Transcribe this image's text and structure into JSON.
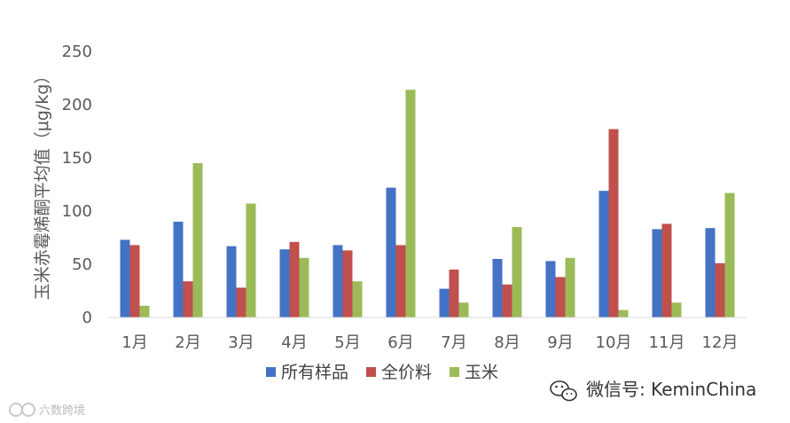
{
  "chart_data": {
    "type": "bar",
    "title": "",
    "xlabel": "",
    "ylabel": "玉米赤霉烯酮平均值（μg/kg）",
    "ylim": [
      0,
      250
    ],
    "yticks": [
      0,
      50,
      100,
      150,
      200,
      250
    ],
    "grid": false,
    "legend_position": "bottom",
    "categories": [
      "1月",
      "2月",
      "3月",
      "4月",
      "5月",
      "6月",
      "7月",
      "8月",
      "9月",
      "10月",
      "11月",
      "12月"
    ],
    "series": [
      {
        "name": "所有样品",
        "color": "#4472C4",
        "values": [
          73,
          90,
          67,
          64,
          68,
          122,
          27,
          55,
          53,
          119,
          83,
          84
        ]
      },
      {
        "name": "全价料",
        "color": "#C0504D",
        "values": [
          68,
          34,
          28,
          71,
          63,
          68,
          45,
          31,
          38,
          177,
          88,
          51
        ]
      },
      {
        "name": "玉米",
        "color": "#9BBB59",
        "values": [
          11,
          145,
          107,
          56,
          34,
          214,
          14,
          85,
          56,
          7,
          14,
          117
        ]
      }
    ]
  },
  "watermark": {
    "text": "微信号: KeminChina",
    "icon": "wechat-icon",
    "corner_logo_text": "六数跨境"
  }
}
